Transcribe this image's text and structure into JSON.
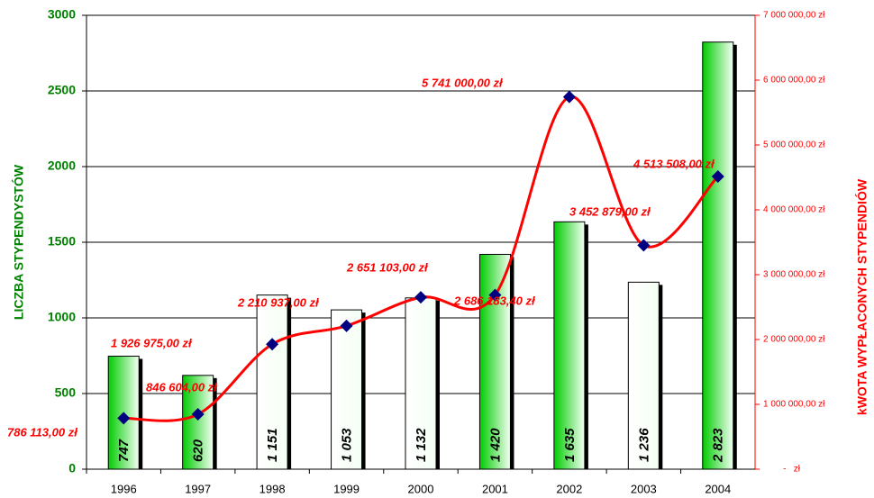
{
  "chart_data": {
    "type": "bar",
    "categories": [
      "1996",
      "1997",
      "1998",
      "1999",
      "2000",
      "2001",
      "2002",
      "2003",
      "2004"
    ],
    "series": [
      {
        "type": "bar",
        "values": [
          747,
          620,
          1151,
          1053,
          1132,
          1420,
          1635,
          1236,
          2823
        ],
        "value_labels": [
          "747",
          "620",
          "1 151",
          "1 053",
          "1 132",
          "1 420",
          "1 635",
          "1 236",
          "2 823"
        ],
        "colors": [
          "#00cc00",
          "#00cc00",
          "#ffffff",
          "#ffffff",
          "#ffffff",
          "#00cc00",
          "#00cc00",
          "#ffffff",
          "#00cc00"
        ]
      },
      {
        "type": "line",
        "axis": "y2",
        "color": "#ff0000",
        "marker_color": "#000080",
        "values": [
          786113,
          846604,
          1926975,
          2210937,
          2651103,
          2686183.4,
          5741000,
          3452879,
          4513508
        ],
        "value_labels": [
          "786 113,00 zł",
          "846 604,00 zł",
          "1 926 975,00 zł",
          "2 210 937,00 zł",
          "2 651 103,00 zł",
          "2 686 183,40 zł",
          "5 741 000,00 zł",
          "3 452 879,00 zł",
          "4 513 508,00 zł"
        ]
      }
    ],
    "ylabel": "LICZBA STYPENDYSTÓW",
    "y2label": "kWOTA WYPŁACONYCH STYPENDIÓW",
    "ylim": [
      0,
      3000
    ],
    "yticks": [
      0,
      500,
      1000,
      1500,
      2000,
      2500,
      3000
    ],
    "y2lim": [
      0,
      7000000
    ],
    "y2ticks": [
      {
        "value": 0,
        "label": "-   zł"
      },
      {
        "value": 1000000,
        "label": "1 000 000,00 zł"
      },
      {
        "value": 2000000,
        "label": "2 000 000,00 zł"
      },
      {
        "value": 3000000,
        "label": "3 000 000,00 zł"
      },
      {
        "value": 4000000,
        "label": "4 000 000,00 zł"
      },
      {
        "value": 5000000,
        "label": "5 000 000,00 zł"
      },
      {
        "value": 6000000,
        "label": "6 000 000,00 zł"
      },
      {
        "value": 7000000,
        "label": "7 000 000,00 zł"
      }
    ],
    "grid": true,
    "ylabel_color": "#008000",
    "y2label_color": "#ff0000"
  }
}
